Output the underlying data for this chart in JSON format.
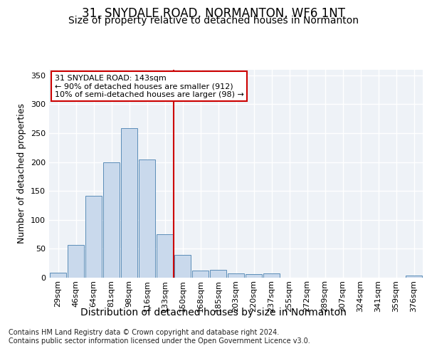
{
  "title": "31, SNYDALE ROAD, NORMANTON, WF6 1NT",
  "subtitle": "Size of property relative to detached houses in Normanton",
  "xlabel": "Distribution of detached houses by size in Normanton",
  "ylabel": "Number of detached properties",
  "categories": [
    "29sqm",
    "46sqm",
    "64sqm",
    "81sqm",
    "98sqm",
    "116sqm",
    "133sqm",
    "150sqm",
    "168sqm",
    "185sqm",
    "203sqm",
    "220sqm",
    "237sqm",
    "255sqm",
    "272sqm",
    "289sqm",
    "307sqm",
    "324sqm",
    "341sqm",
    "359sqm",
    "376sqm"
  ],
  "values": [
    9,
    57,
    142,
    199,
    258,
    204,
    75,
    40,
    12,
    13,
    7,
    6,
    7,
    0,
    0,
    0,
    0,
    0,
    0,
    0,
    4
  ],
  "bar_color": "#c9d9ec",
  "bar_edge_color": "#5b8db8",
  "background_color": "#eef2f7",
  "grid_color": "#ffffff",
  "annotation_text": "31 SNYDALE ROAD: 143sqm\n← 90% of detached houses are smaller (912)\n10% of semi-detached houses are larger (98) →",
  "vline_x": 6.5,
  "vline_color": "#cc0000",
  "annotation_box_color": "#ffffff",
  "annotation_box_edge": "#cc0000",
  "footer_text": "Contains HM Land Registry data © Crown copyright and database right 2024.\nContains public sector information licensed under the Open Government Licence v3.0.",
  "ylim": [
    0,
    360
  ],
  "title_fontsize": 12,
  "subtitle_fontsize": 10,
  "ylabel_fontsize": 9,
  "xlabel_fontsize": 10,
  "tick_fontsize": 8,
  "footer_fontsize": 7
}
